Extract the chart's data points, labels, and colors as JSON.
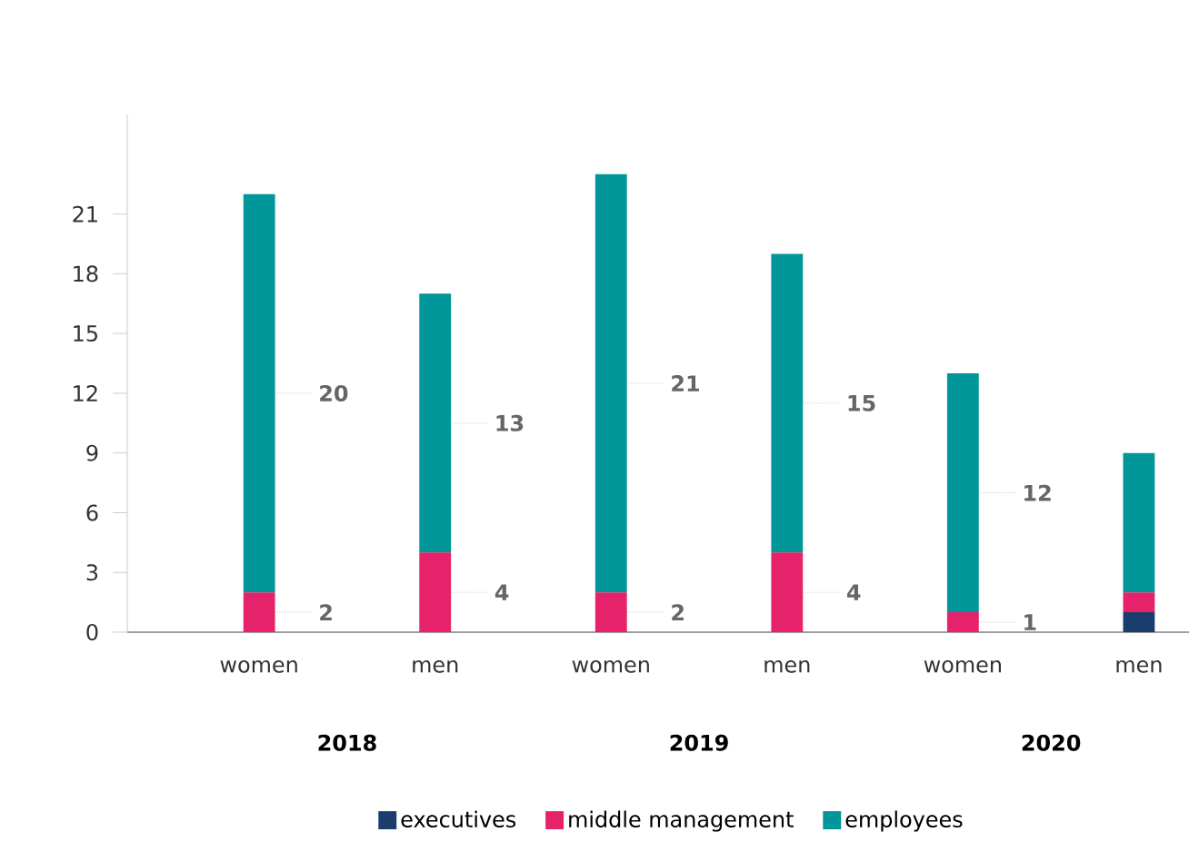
{
  "chart_data": {
    "type": "bar",
    "stacked": true,
    "categories": [
      "women",
      "men",
      "women",
      "men",
      "women",
      "men"
    ],
    "series": [
      {
        "name": "executives",
        "color": "#1a3d6e",
        "values": [
          0,
          0,
          0,
          0,
          0,
          1
        ],
        "value_labels": [
          null,
          null,
          null,
          null,
          null,
          null
        ]
      },
      {
        "name": "middle management",
        "color": "#e6226b",
        "values": [
          2,
          4,
          2,
          4,
          1,
          1
        ],
        "value_labels": [
          "2",
          "4",
          "2",
          "4",
          "1",
          null
        ]
      },
      {
        "name": "employees",
        "color": "#00969a",
        "values": [
          20,
          13,
          21,
          15,
          12,
          7
        ],
        "value_labels": [
          "20",
          "13",
          "21",
          "15",
          "12",
          null
        ]
      }
    ],
    "ylim": [
      0,
      26
    ],
    "yticks": [
      0,
      3,
      6,
      9,
      12,
      15,
      18,
      21
    ],
    "grid": false,
    "legend": "bottom",
    "annotations": [
      "2018",
      "2019",
      "2020"
    ]
  }
}
